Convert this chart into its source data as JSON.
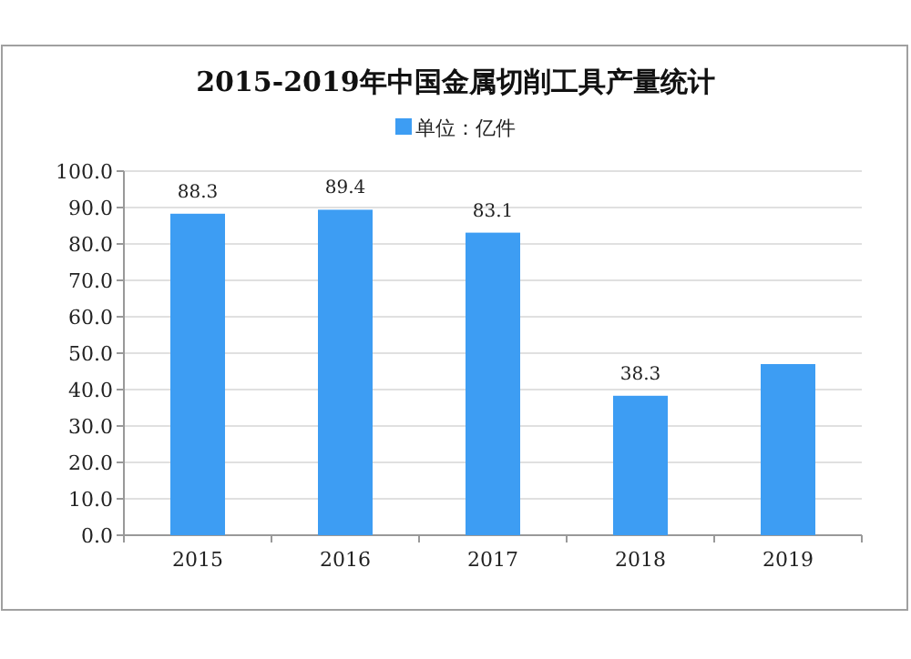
{
  "chart_data": {
    "type": "bar",
    "title": "2015-2019年中国金属切削工具产量统计",
    "categories": [
      "2015",
      "2016",
      "2017",
      "2018",
      "2019"
    ],
    "series": [
      {
        "name": "单位：亿件",
        "color": "#3d9df3",
        "values": [
          88.3,
          89.4,
          83.1,
          38.3,
          47.0
        ],
        "value_labels": [
          "88.3",
          "89.4",
          "83.1",
          "38.3",
          null
        ]
      }
    ],
    "ylim": [
      0,
      100
    ],
    "yticks": [
      {
        "value": 0,
        "label": "0.0"
      },
      {
        "value": 10,
        "label": "10.0"
      },
      {
        "value": 20,
        "label": "20.0"
      },
      {
        "value": 30,
        "label": "30.0"
      },
      {
        "value": 40,
        "label": "40.0"
      },
      {
        "value": 50,
        "label": "50.0"
      },
      {
        "value": 60,
        "label": "60.0"
      },
      {
        "value": 70,
        "label": "70.0"
      },
      {
        "value": 80,
        "label": "80.0"
      },
      {
        "value": 90,
        "label": "90.0"
      },
      {
        "value": 100,
        "label": "100.0"
      }
    ],
    "grid": "y",
    "legend": "top"
  }
}
